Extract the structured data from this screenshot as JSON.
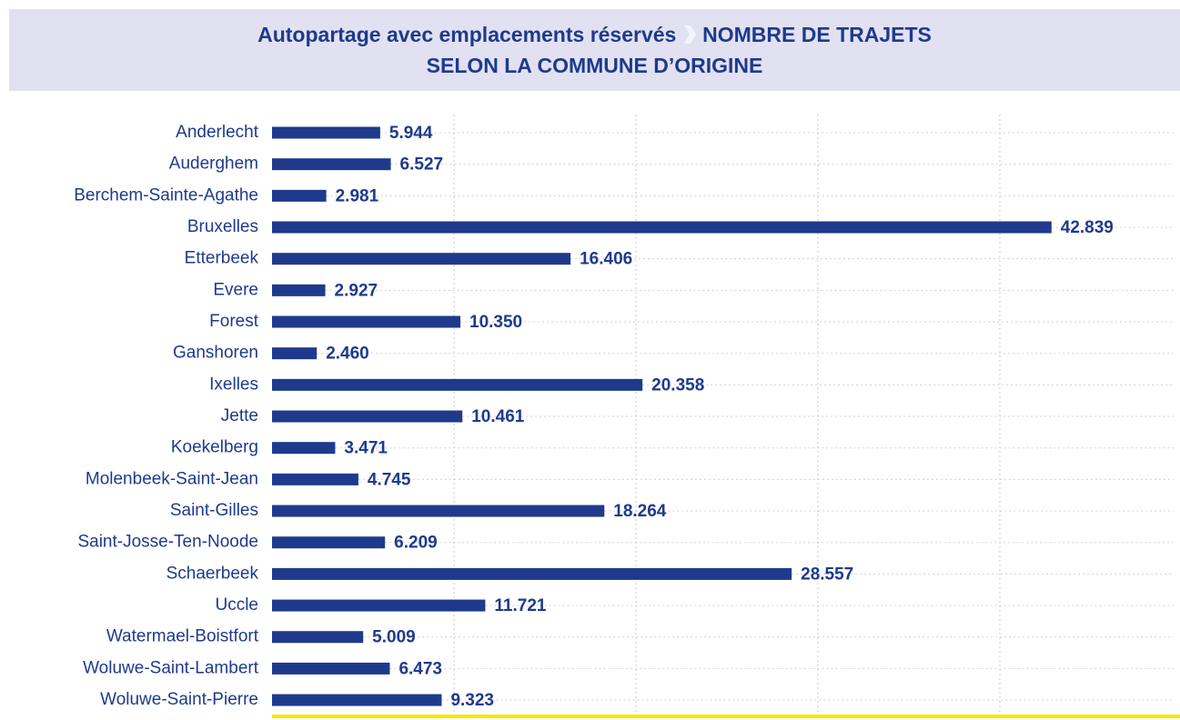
{
  "chart_data": {
    "type": "barh",
    "title": "Autopartage avec emplacements réservés",
    "subtitle": "NOMBRE DE TRAJETS SELON LA COMMUNE D’ORIGINE",
    "categories": [
      "Anderlecht",
      "Auderghem",
      "Berchem-Sainte-Agathe",
      "Bruxelles",
      "Etterbeek",
      "Evere",
      "Forest",
      "Ganshoren",
      "Ixelles",
      "Jette",
      "Koekelberg",
      "Molenbeek-Saint-Jean",
      "Saint-Gilles",
      "Saint-Josse-Ten-Noode",
      "Schaerbeek",
      "Uccle",
      "Watermael-Boistfort",
      "Woluwe-Saint-Lambert",
      "Woluwe-Saint-Pierre"
    ],
    "values": [
      5944,
      6527,
      2981,
      42839,
      16406,
      2927,
      10350,
      2460,
      20358,
      10461,
      3471,
      4745,
      18264,
      6209,
      28557,
      11721,
      5009,
      6473,
      9323
    ],
    "value_labels": [
      "5.944",
      "6.527",
      "2.981",
      "42.839",
      "16.406",
      "2.927",
      "10.350",
      "2.460",
      "20.358",
      "10.461",
      "3.471",
      "4.745",
      "18.264",
      "6.209",
      "28.557",
      "11.721",
      "5.009",
      "6.473",
      "9.323"
    ],
    "color": "#1f3a8c",
    "xlim": [
      0,
      50000
    ],
    "xticks": [
      10000,
      20000,
      30000,
      40000
    ],
    "grid": true
  }
}
